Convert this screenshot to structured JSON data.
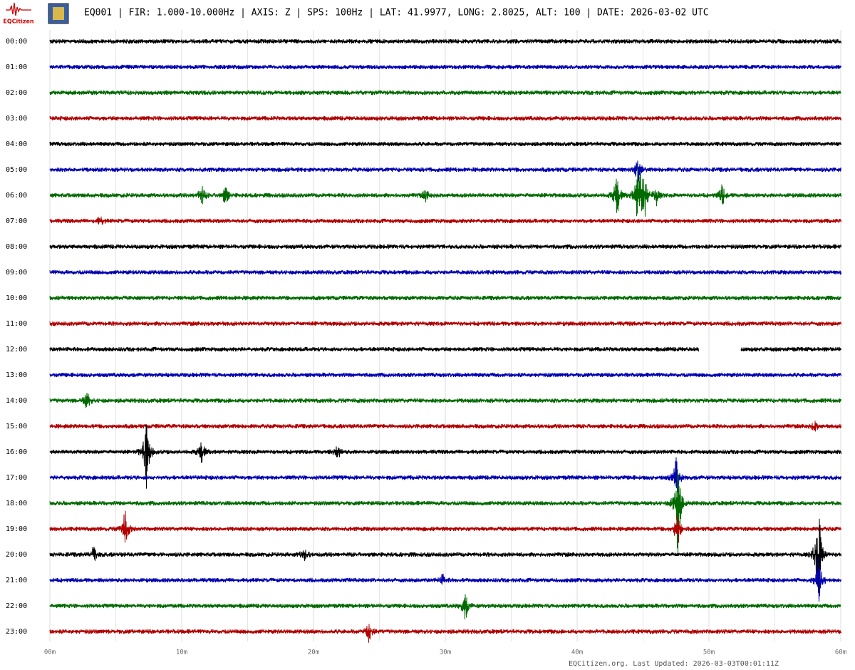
{
  "chart_data": {
    "type": "helicorder",
    "logo_text": "EQCitizen",
    "title": "EQ001 | FIR: 1.000-10.000Hz | AXIS: Z | SPS: 100Hz | LAT: 41.9977, LONG: 2.8025, ALT: 100 | DATE: 2026-03-02 UTC",
    "categories": [
      "00:00",
      "01:00",
      "02:00",
      "03:00",
      "04:00",
      "05:00",
      "06:00",
      "07:00",
      "08:00",
      "09:00",
      "10:00",
      "11:00",
      "12:00",
      "13:00",
      "14:00",
      "15:00",
      "16:00",
      "17:00",
      "18:00",
      "19:00",
      "20:00",
      "21:00",
      "22:00",
      "23:00"
    ],
    "colors": [
      "#000000",
      "#0000b0",
      "#006a00",
      "#b00000"
    ],
    "xlim": [
      0,
      60
    ],
    "xticks": [
      {
        "value": 0,
        "label": "00m"
      },
      {
        "value": 10,
        "label": "10m"
      },
      {
        "value": 20,
        "label": "20m"
      },
      {
        "value": 30,
        "label": "30m"
      },
      {
        "value": 40,
        "label": "40m"
      },
      {
        "value": 50,
        "label": "50m"
      },
      {
        "value": 60,
        "label": "60m"
      }
    ],
    "x_minor_ticks": [
      5,
      15,
      25,
      35,
      45,
      55
    ],
    "grid": true,
    "footer": "EQCitizen.org. Last Updated: 2026-03-03T00:01:11Z"
  }
}
